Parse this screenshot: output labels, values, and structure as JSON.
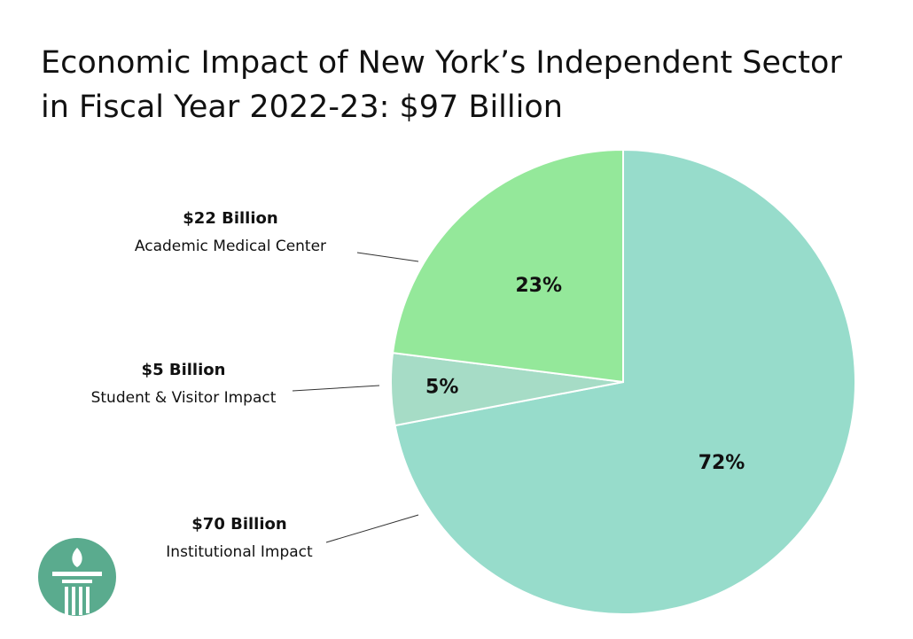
{
  "chart_data": {
    "type": "pie",
    "title": [
      "Economic Impact of New York’s Independent Sector",
      "in Fiscal Year 2022-23: $97 Billion"
    ],
    "categories": [
      "Institutional Impact",
      "Student & Visitor Impact",
      "Academic Medical Center"
    ],
    "amount_labels": [
      "$70 Billion",
      "$5 Billion",
      "$22 Billion"
    ],
    "values": [
      72,
      5,
      23
    ],
    "value_labels": [
      "72%",
      "5%",
      "23%"
    ],
    "colors": [
      "#97dccb",
      "#a6dcc6",
      "#94e89a"
    ]
  }
}
